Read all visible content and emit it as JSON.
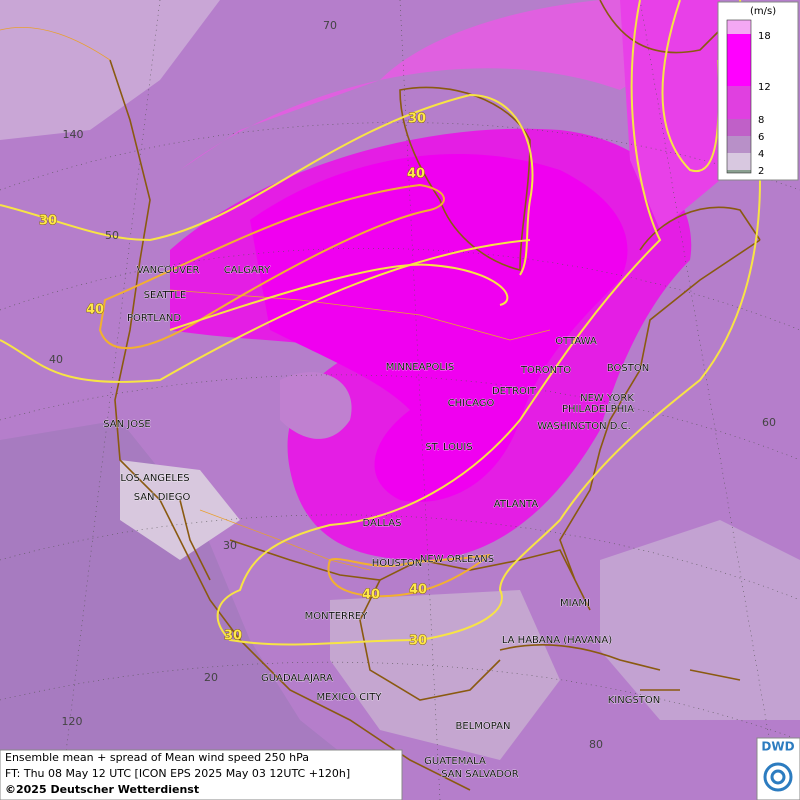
{
  "map": {
    "cities": [
      "VANCOUVER",
      "CALGARY",
      "SEATTLE",
      "PORTLAND",
      "MINNEAPOLIS",
      "TORONTO",
      "OTTAWA",
      "DETROIT",
      "CHICAGO",
      "BOSTON",
      "NEW YORK",
      "PHILADELPHIA",
      "WASHINGTON D.C.",
      "ST. LOUIS",
      "SAN JOSE",
      "LOS ANGELES",
      "SAN DIEGO",
      "ATLANTA",
      "DALLAS",
      "HOUSTON",
      "NEW ORLEANS",
      "MIAMI",
      "MONTERREY",
      "LA HABANA (HAVANA)",
      "GUADALAJARA",
      "MEXICO CITY",
      "KINGSTON",
      "BELMOPAN",
      "GUATEMALA",
      "SAN SALVADOR"
    ],
    "graticule_labels": [
      "70",
      "140",
      "50",
      "40",
      "60",
      "30",
      "20",
      "120",
      "80"
    ],
    "contour_labels": [
      30,
      40,
      30,
      40,
      40,
      40,
      30,
      30
    ]
  },
  "legend": {
    "title": "(m/s)",
    "ticks": [
      18,
      12,
      8,
      6,
      4,
      2
    ]
  },
  "footer": {
    "lines": [
      "Ensemble mean + spread of Mean wind speed 250 hPa",
      "FT: Thu 08 May 12 UTC [ICON EPS 2025 May 03 12UTC +120h]",
      "©2025 Deutscher Wetterdienst"
    ]
  },
  "logo": {
    "text": "DWD"
  }
}
